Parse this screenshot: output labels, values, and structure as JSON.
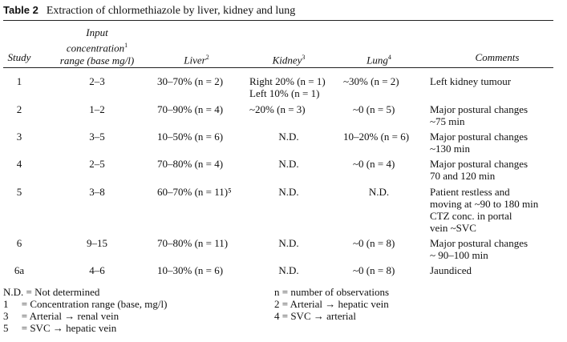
{
  "title": {
    "label": "Table 2",
    "text": "Extraction of chlormethiazole by liver, kidney and lung"
  },
  "headers": {
    "study": "Study",
    "input_l1": "Input",
    "input_l2": "concentration",
    "input_sup": "1",
    "input_l3": "range (base mg/l)",
    "liver": "Liver",
    "liver_sup": "2",
    "kidney": "Kidney",
    "kidney_sup": "3",
    "lung": "Lung",
    "lung_sup": "4",
    "comments": "Comments"
  },
  "rows": [
    {
      "study": "1",
      "range": "2–3",
      "liver": "30–70% (n = 2)",
      "kidney": [
        "Right 20% (n = 1)",
        "Left 10% (n = 1)"
      ],
      "lung": "~30% (n = 2)",
      "comments": [
        "Left kidney tumour"
      ]
    },
    {
      "study": "2",
      "range": "1–2",
      "liver": "70–90% (n = 4)",
      "kidney": [
        "~20% (n = 3)"
      ],
      "lung": "~0 (n = 5)",
      "comments": [
        "Major postural changes",
        "~75 min"
      ]
    },
    {
      "study": "3",
      "range": "3–5",
      "liver": "10–50% (n = 6)",
      "kidney": [
        "N.D."
      ],
      "lung": "10–20% (n = 6)",
      "comments": [
        "Major postural changes",
        "~130 min"
      ]
    },
    {
      "study": "4",
      "range": "2–5",
      "liver": "70–80% (n = 4)",
      "kidney": [
        "N.D."
      ],
      "lung": "~0 (n = 4)",
      "comments": [
        "Major postural changes",
        "70 and 120 min"
      ]
    },
    {
      "study": "5",
      "range": "3–8",
      "liver": "60–70% (n = 11)⁵",
      "kidney": [
        "N.D."
      ],
      "lung": "N.D.",
      "comments": [
        "Patient restless and",
        "moving at ~90 to 180 min",
        "CTZ conc. in portal",
        "vein ~SVC"
      ]
    },
    {
      "study": "6",
      "range": "9–15",
      "liver": "70–80% (n = 11)",
      "kidney": [
        "N.D."
      ],
      "lung": "~0 (n = 8)",
      "comments": [
        "Major postural changes",
        "~ 90–100 min"
      ]
    },
    {
      "study": "6a",
      "range": "4–6",
      "liver": "10–30% (n = 6)",
      "kidney": [
        "N.D."
      ],
      "lung": "~0 (n = 8)",
      "comments": [
        "Jaundiced"
      ]
    }
  ],
  "footnotes": {
    "left": [
      "N.D. = Not determined",
      "1     = Concentration range (base, mg/l)",
      "3     = Arterial → renal vein",
      "5     = SVC → hepatic vein"
    ],
    "right": [
      "n = number of observations",
      "2 = Arterial → hepatic vein",
      "4 = SVC → arterial"
    ]
  }
}
